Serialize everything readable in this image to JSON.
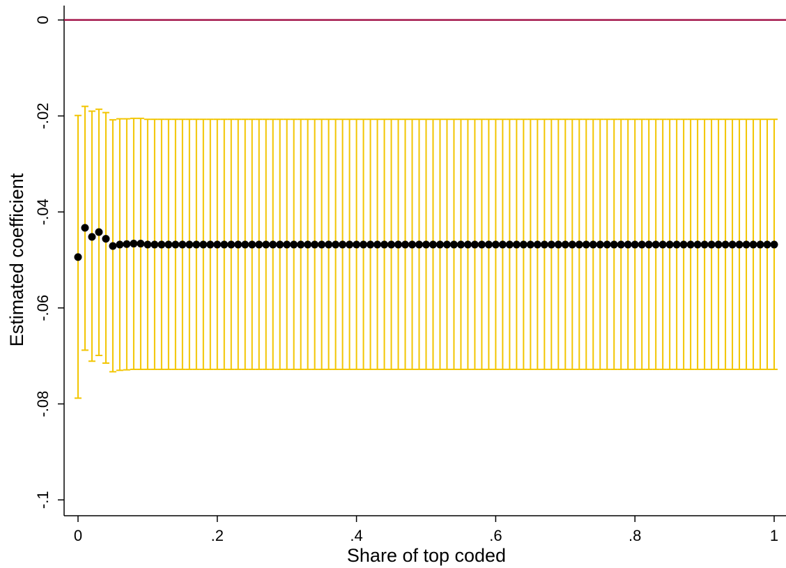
{
  "chart_data": {
    "type": "errorbar",
    "x_label": "Share of top coded",
    "y_label": "Estimated coefficient",
    "xlim": [
      -0.02,
      1.017
    ],
    "ylim": [
      -0.1033,
      0.003
    ],
    "xticks": [
      0,
      {
        "value": 0.2,
        "label": ".2"
      },
      {
        "value": 0.4,
        "label": ".4"
      },
      {
        "value": 0.6,
        "label": ".6"
      },
      {
        "value": 0.8,
        "label": ".8"
      },
      1
    ],
    "yticks": [
      0,
      {
        "value": -0.02,
        "label": "-.02"
      },
      {
        "value": -0.04,
        "label": "-.04"
      },
      {
        "value": -0.06,
        "label": "-.06"
      },
      {
        "value": -0.08,
        "label": "-.08"
      },
      {
        "value": -0.1,
        "label": "-.1"
      }
    ],
    "reference_line": {
      "value": 0,
      "color": "#a3154a"
    },
    "x": [
      0,
      0.01,
      0.02,
      0.03,
      0.04,
      0.05,
      0.06,
      0.07,
      0.08,
      0.09,
      0.1,
      0.11,
      0.12,
      0.13,
      0.14,
      0.15,
      0.16,
      0.17,
      0.18,
      0.19,
      0.2,
      0.21,
      0.22,
      0.23,
      0.24,
      0.25,
      0.26,
      0.27,
      0.28,
      0.29,
      0.3,
      0.31,
      0.32,
      0.33,
      0.34,
      0.35,
      0.36,
      0.37,
      0.38,
      0.39,
      0.4,
      0.41,
      0.42,
      0.43,
      0.44,
      0.45,
      0.46,
      0.47,
      0.48,
      0.49,
      0.5,
      0.51,
      0.52,
      0.53,
      0.54,
      0.55,
      0.56,
      0.57,
      0.58,
      0.59,
      0.6,
      0.61,
      0.62,
      0.63,
      0.64,
      0.65,
      0.66,
      0.67,
      0.68,
      0.69,
      0.7,
      0.71,
      0.72,
      0.73,
      0.74,
      0.75,
      0.76,
      0.77,
      0.78,
      0.79,
      0.8,
      0.81,
      0.82,
      0.83,
      0.84,
      0.85,
      0.86,
      0.87,
      0.88,
      0.89,
      0.9,
      0.91,
      0.92,
      0.93,
      0.94,
      0.95,
      0.96,
      0.97,
      0.98,
      0.99,
      1
    ],
    "series": [
      {
        "color": "#000000",
        "bar_color": "#f2c500",
        "values": [
          -0.0494,
          -0.0433,
          -0.0452,
          -0.0442,
          -0.0456,
          -0.0471,
          -0.0468,
          -0.0467,
          -0.0466,
          -0.0466,
          -0.0468,
          -0.0468,
          -0.0468,
          -0.0468,
          -0.0468,
          -0.0468,
          -0.0468,
          -0.0468,
          -0.0468,
          -0.0468,
          -0.0468,
          -0.0468,
          -0.0468,
          -0.0468,
          -0.0468,
          -0.0468,
          -0.0468,
          -0.0468,
          -0.0468,
          -0.0468,
          -0.0468,
          -0.0468,
          -0.0468,
          -0.0468,
          -0.0468,
          -0.0468,
          -0.0468,
          -0.0468,
          -0.0468,
          -0.0468,
          -0.0468,
          -0.0468,
          -0.0468,
          -0.0468,
          -0.0468,
          -0.0468,
          -0.0468,
          -0.0468,
          -0.0468,
          -0.0468,
          -0.0468,
          -0.0468,
          -0.0468,
          -0.0468,
          -0.0468,
          -0.0468,
          -0.0468,
          -0.0468,
          -0.0468,
          -0.0468,
          -0.0468,
          -0.0468,
          -0.0468,
          -0.0468,
          -0.0468,
          -0.0468,
          -0.0468,
          -0.0468,
          -0.0468,
          -0.0468,
          -0.0468,
          -0.0468,
          -0.0468,
          -0.0468,
          -0.0468,
          -0.0468,
          -0.0468,
          -0.0468,
          -0.0468,
          -0.0468,
          -0.0468,
          -0.0468,
          -0.0468,
          -0.0468,
          -0.0468,
          -0.0468,
          -0.0468,
          -0.0468,
          -0.0468,
          -0.0468,
          -0.0468,
          -0.0468,
          -0.0468,
          -0.0468,
          -0.0468,
          -0.0468,
          -0.0468,
          -0.0468,
          -0.0468,
          -0.0468,
          -0.0468
        ],
        "upper": [
          -0.0199,
          -0.018,
          -0.019,
          -0.0186,
          -0.0193,
          -0.0208,
          -0.0206,
          -0.0206,
          -0.0205,
          -0.0205,
          -0.0207,
          -0.0207,
          -0.0207,
          -0.0207,
          -0.0207,
          -0.0207,
          -0.0207,
          -0.0207,
          -0.0207,
          -0.0207,
          -0.0207,
          -0.0207,
          -0.0207,
          -0.0207,
          -0.0207,
          -0.0207,
          -0.0207,
          -0.0207,
          -0.0207,
          -0.0207,
          -0.0207,
          -0.0207,
          -0.0207,
          -0.0207,
          -0.0207,
          -0.0207,
          -0.0207,
          -0.0207,
          -0.0207,
          -0.0207,
          -0.0207,
          -0.0207,
          -0.0207,
          -0.0207,
          -0.0207,
          -0.0207,
          -0.0207,
          -0.0207,
          -0.0207,
          -0.0207,
          -0.0207,
          -0.0207,
          -0.0207,
          -0.0207,
          -0.0207,
          -0.0207,
          -0.0207,
          -0.0207,
          -0.0207,
          -0.0207,
          -0.0207,
          -0.0207,
          -0.0207,
          -0.0207,
          -0.0207,
          -0.0207,
          -0.0207,
          -0.0207,
          -0.0207,
          -0.0207,
          -0.0207,
          -0.0207,
          -0.0207,
          -0.0207,
          -0.0207,
          -0.0207,
          -0.0207,
          -0.0207,
          -0.0207,
          -0.0207,
          -0.0207,
          -0.0207,
          -0.0207,
          -0.0207,
          -0.0207,
          -0.0207,
          -0.0207,
          -0.0207,
          -0.0207,
          -0.0207,
          -0.0207,
          -0.0207,
          -0.0207,
          -0.0207,
          -0.0207,
          -0.0207,
          -0.0207,
          -0.0207,
          -0.0207,
          -0.0207,
          -0.0207
        ],
        "lower": [
          -0.0788,
          -0.0688,
          -0.0711,
          -0.0699,
          -0.0715,
          -0.0733,
          -0.073,
          -0.0729,
          -0.0728,
          -0.0728,
          -0.0728,
          -0.0728,
          -0.0728,
          -0.0728,
          -0.0728,
          -0.0728,
          -0.0728,
          -0.0728,
          -0.0728,
          -0.0728,
          -0.0728,
          -0.0728,
          -0.0728,
          -0.0728,
          -0.0728,
          -0.0728,
          -0.0728,
          -0.0728,
          -0.0728,
          -0.0728,
          -0.0728,
          -0.0728,
          -0.0728,
          -0.0728,
          -0.0728,
          -0.0728,
          -0.0728,
          -0.0728,
          -0.0728,
          -0.0728,
          -0.0728,
          -0.0728,
          -0.0728,
          -0.0728,
          -0.0728,
          -0.0728,
          -0.0728,
          -0.0728,
          -0.0728,
          -0.0728,
          -0.0728,
          -0.0728,
          -0.0728,
          -0.0728,
          -0.0728,
          -0.0728,
          -0.0728,
          -0.0728,
          -0.0728,
          -0.0728,
          -0.0728,
          -0.0728,
          -0.0728,
          -0.0728,
          -0.0728,
          -0.0728,
          -0.0728,
          -0.0728,
          -0.0728,
          -0.0728,
          -0.0728,
          -0.0728,
          -0.0728,
          -0.0728,
          -0.0728,
          -0.0728,
          -0.0728,
          -0.0728,
          -0.0728,
          -0.0728,
          -0.0728,
          -0.0728,
          -0.0728,
          -0.0728,
          -0.0728,
          -0.0728,
          -0.0728,
          -0.0728,
          -0.0728,
          -0.0728,
          -0.0728,
          -0.0728,
          -0.0728,
          -0.0728,
          -0.0728,
          -0.0728,
          -0.0728,
          -0.0728,
          -0.0728,
          -0.0728,
          -0.0728
        ]
      }
    ]
  }
}
